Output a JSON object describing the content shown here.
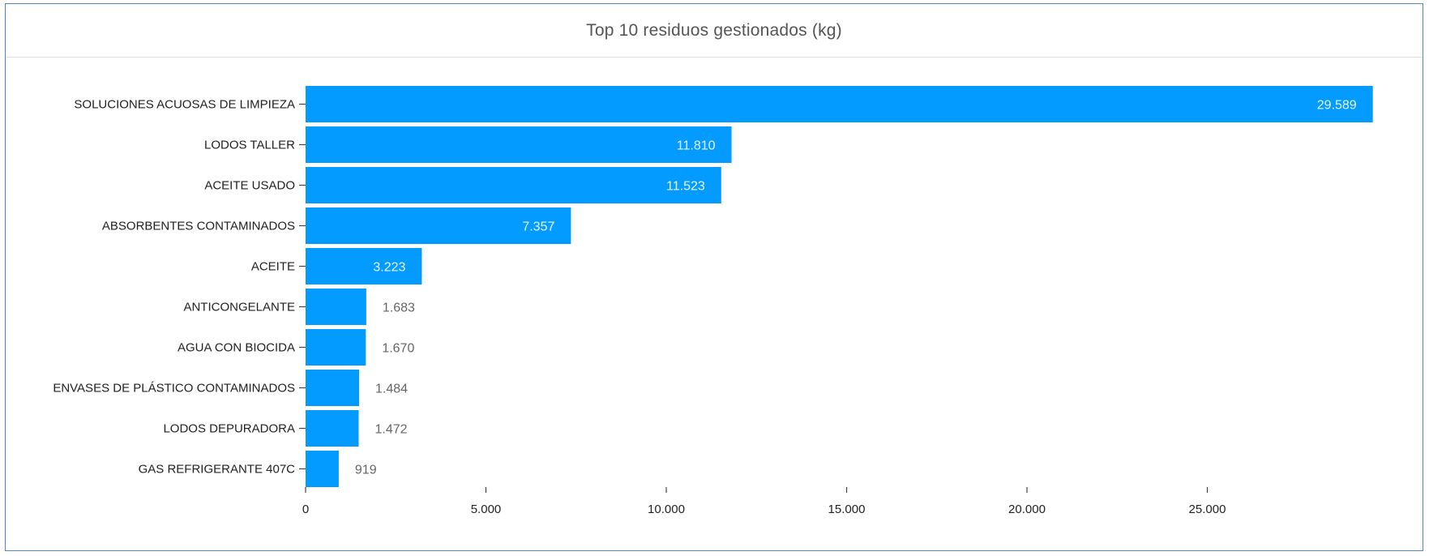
{
  "panel": {
    "title": "Top 10 residuos gestionados (kg)"
  },
  "chart_data": {
    "type": "bar",
    "orientation": "horizontal",
    "title": "Top 10 residuos gestionados (kg)",
    "xlabel": "",
    "ylabel": "",
    "categories": [
      "SOLUCIONES ACUOSAS DE LIMPIEZA",
      "LODOS TALLER",
      "ACEITE USADO",
      "ABSORBENTES CONTAMINADOS",
      "ACEITE",
      "ANTICONGELANTE",
      "AGUA CON BIOCIDA",
      "ENVASES DE PLÁSTICO CONTAMINADOS",
      "LODOS DEPURADORA",
      "GAS REFRIGERANTE 407C"
    ],
    "values": [
      29589,
      11810,
      11523,
      7357,
      3223,
      1683,
      1670,
      1484,
      1472,
      919
    ],
    "value_labels": [
      "29.589",
      "11.810",
      "11.523",
      "7.357",
      "3.223",
      "1.683",
      "1.670",
      "1.484",
      "1.472",
      "919"
    ],
    "xlim": [
      0,
      30000
    ],
    "xticks": [
      0,
      5000,
      10000,
      15000,
      20000,
      25000
    ],
    "xtick_labels": [
      "0",
      "5.000",
      "10.000",
      "15.000",
      "20.000",
      "25.000"
    ],
    "grid": false,
    "legend": "none",
    "colors": {
      "bar": "#039bff",
      "label_inside": "#e6f5ff",
      "label_outside": "#666666",
      "axis": "#444444"
    }
  }
}
